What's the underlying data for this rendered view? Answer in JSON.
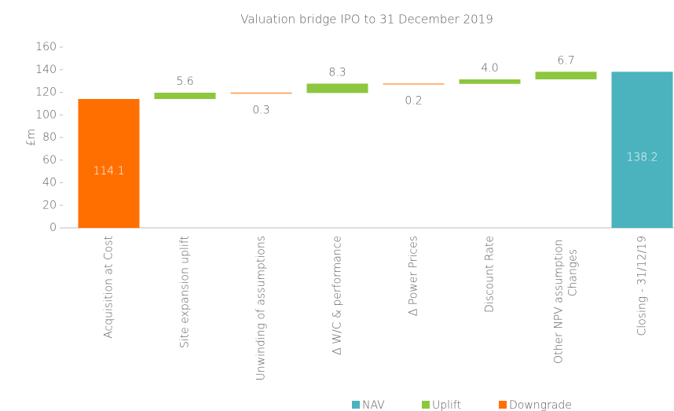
{
  "chart_data": {
    "type": "waterfall",
    "title": "Valuation bridge IPO  to 31 December 2019",
    "y_label": "£m",
    "categories": [
      "Acquisition at Cost",
      "Site expansion uplift",
      "Unwinding of assumptions",
      "Δ W/C & performance",
      "Δ Power Prices",
      "Discount Rate",
      "Other NPV assumption Changes",
      "Closing - 31/12/19"
    ],
    "values": [
      114.1,
      5.6,
      -0.3,
      8.3,
      -0.2,
      4.0,
      6.7,
      138.2
    ],
    "value_labels": [
      "114.1",
      "5.6",
      "0.3",
      "8.3",
      "0.2",
      "4.0",
      "6.7",
      "138.2"
    ],
    "colors": [
      "#ff6f00",
      "#8dc63f",
      "#ff6f00",
      "#8dc63f",
      "#ff6f00",
      "#8dc63f",
      "#8dc63f",
      "#4bb3bd"
    ],
    "total_indices": [
      0,
      7
    ],
    "legend": [
      {
        "name": "NAV",
        "color": "#4bb3bd"
      },
      {
        "name": "Uplift",
        "color": "#8dc63f"
      },
      {
        "name": "Downgrade",
        "color": "#ff6f00"
      }
    ],
    "ylim": [
      0,
      160
    ],
    "yticks": [
      0,
      20,
      40,
      60,
      80,
      100,
      120,
      140,
      160
    ]
  }
}
